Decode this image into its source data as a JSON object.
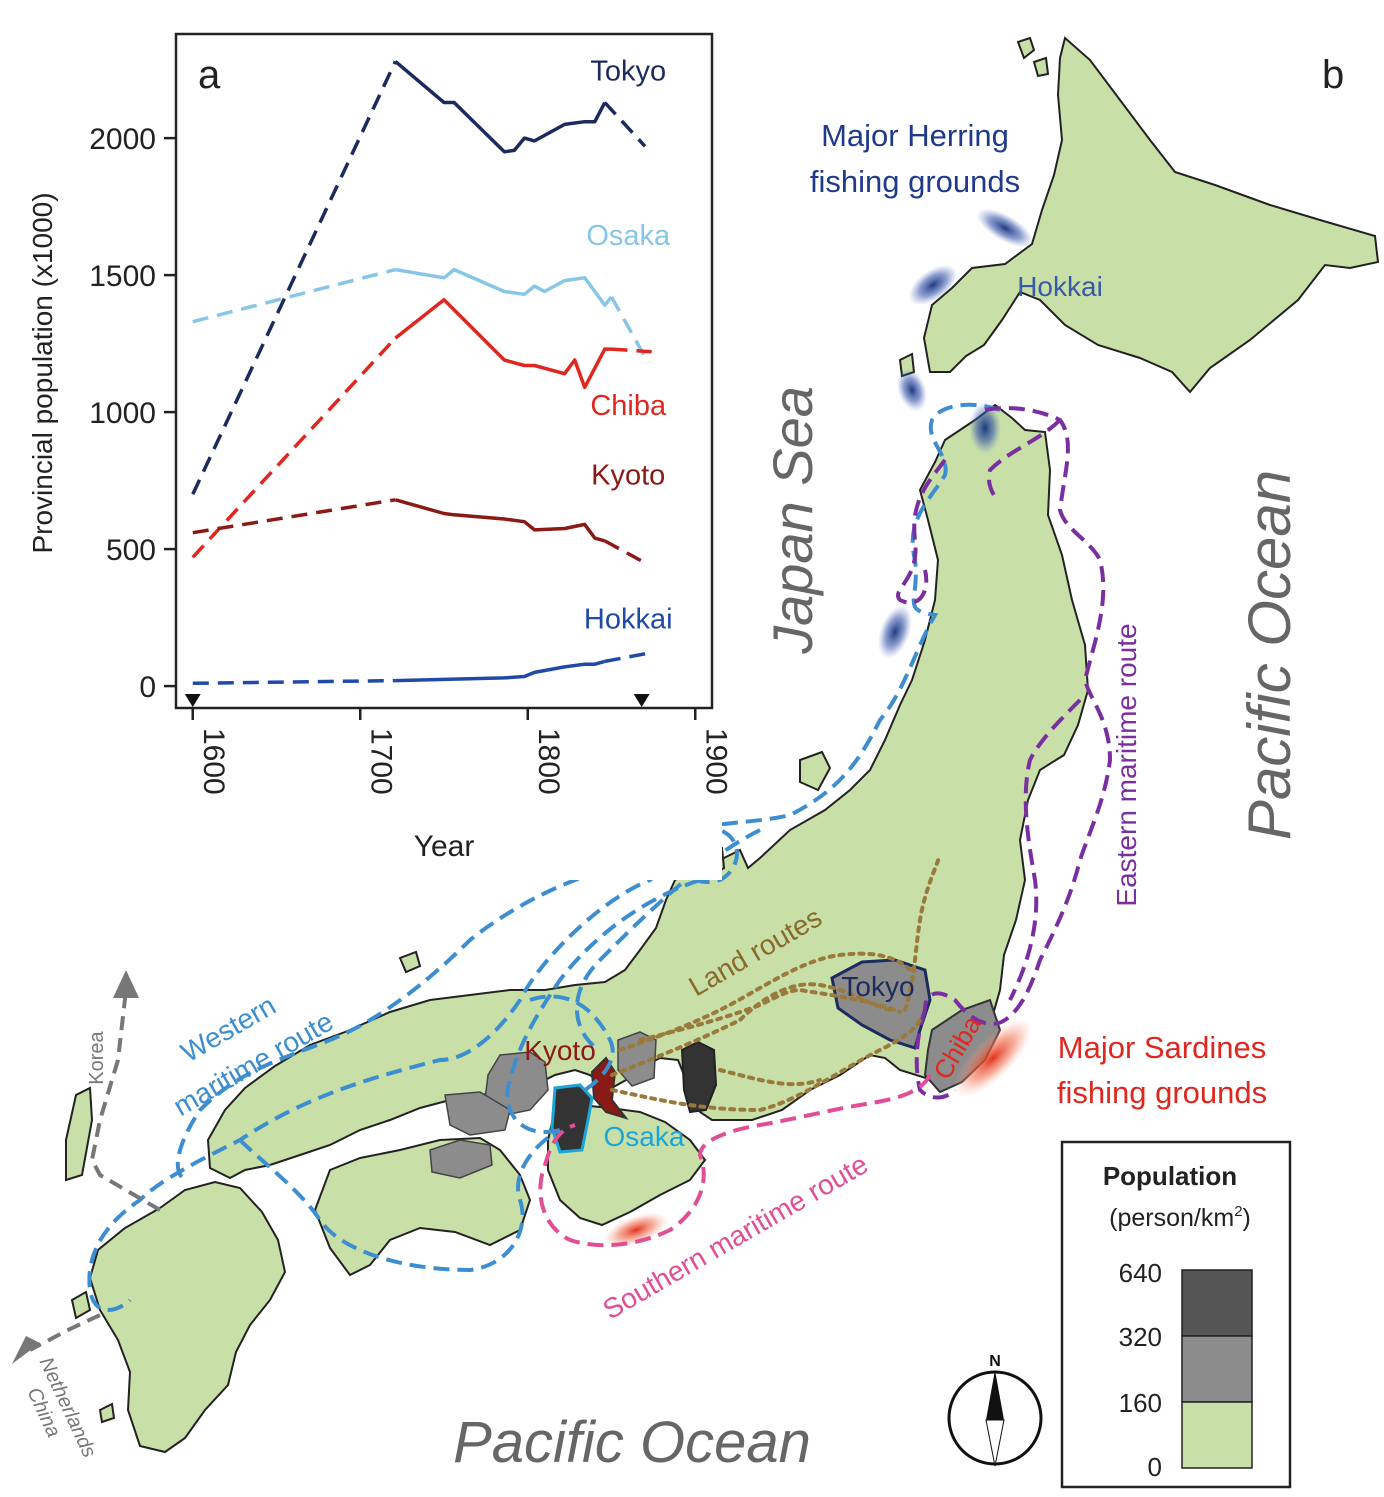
{
  "panel_a": {
    "label": "a",
    "ylabel": "Provincial population (x1000)",
    "xlabel": "Year",
    "colors": {
      "Tokyo": "#1d2a5e",
      "Osaka": "#87c6e6",
      "Chiba": "#e0271f",
      "Kyoto": "#8a1a16",
      "Hokkai": "#1f4aa8"
    }
  },
  "chart_data": {
    "type": "line",
    "xlabel": "Year",
    "ylabel": "Provincial population (x1000)",
    "xlim": [
      1590,
      1910
    ],
    "ylim": [
      -80,
      2380
    ],
    "x_ticks": [
      "1600",
      "1700",
      "1800",
      "1900"
    ],
    "y_ticks": [
      "0",
      "500",
      "1000",
      "1500",
      "2000"
    ],
    "x_tick_values": [
      1600,
      1700,
      1800,
      1900
    ],
    "y_tick_values": [
      0,
      500,
      1000,
      1500,
      2000
    ],
    "markers_x": [
      1600,
      1868
    ],
    "series": [
      {
        "name": "Tokyo",
        "label_at": [
          1860,
          2210
        ],
        "dashed": [
          [
            1600,
            700
          ],
          [
            1721,
            2280
          ]
        ],
        "solid": [
          [
            1721,
            2280
          ],
          [
            1750,
            2130
          ],
          [
            1756,
            2130
          ],
          [
            1786,
            1950
          ],
          [
            1792,
            1955
          ],
          [
            1798,
            2000
          ],
          [
            1804,
            1990
          ],
          [
            1822,
            2050
          ],
          [
            1834,
            2060
          ],
          [
            1840,
            2060
          ],
          [
            1846,
            2130
          ]
        ],
        "dashed_end": [
          [
            1846,
            2130
          ],
          [
            1870,
            1970
          ]
        ]
      },
      {
        "name": "Osaka",
        "label_at": [
          1860,
          1610
        ],
        "dashed": [
          [
            1600,
            1330
          ],
          [
            1721,
            1520
          ]
        ],
        "solid": [
          [
            1721,
            1520
          ],
          [
            1750,
            1490
          ],
          [
            1756,
            1520
          ],
          [
            1786,
            1440
          ],
          [
            1798,
            1430
          ],
          [
            1804,
            1460
          ],
          [
            1810,
            1440
          ],
          [
            1822,
            1480
          ],
          [
            1834,
            1490
          ],
          [
            1840,
            1440
          ],
          [
            1846,
            1390
          ],
          [
            1850,
            1420
          ]
        ],
        "dashed_end": [
          [
            1850,
            1420
          ],
          [
            1872,
            1180
          ]
        ]
      },
      {
        "name": "Chiba",
        "label_at": [
          1860,
          990
        ],
        "dashed": [
          [
            1600,
            470
          ],
          [
            1721,
            1270
          ]
        ],
        "solid": [
          [
            1721,
            1270
          ],
          [
            1750,
            1410
          ],
          [
            1786,
            1190
          ],
          [
            1798,
            1170
          ],
          [
            1804,
            1170
          ],
          [
            1822,
            1140
          ],
          [
            1828,
            1190
          ],
          [
            1834,
            1090
          ],
          [
            1846,
            1230
          ],
          [
            1850,
            1230
          ]
        ],
        "dashed_end": [
          [
            1850,
            1230
          ],
          [
            1874,
            1220
          ]
        ]
      },
      {
        "name": "Kyoto",
        "label_at": [
          1860,
          735
        ],
        "dashed": [
          [
            1600,
            560
          ],
          [
            1721,
            680
          ]
        ],
        "solid": [
          [
            1721,
            680
          ],
          [
            1750,
            630
          ],
          [
            1756,
            625
          ],
          [
            1786,
            610
          ],
          [
            1798,
            600
          ],
          [
            1804,
            570
          ],
          [
            1822,
            575
          ],
          [
            1834,
            590
          ],
          [
            1840,
            540
          ],
          [
            1846,
            530
          ]
        ],
        "dashed_end": [
          [
            1846,
            530
          ],
          [
            1870,
            450
          ]
        ]
      },
      {
        "name": "Hokkai",
        "label_at": [
          1860,
          210
        ],
        "dashed": [
          [
            1600,
            10
          ],
          [
            1721,
            20
          ]
        ],
        "solid": [
          [
            1721,
            20
          ],
          [
            1786,
            30
          ],
          [
            1798,
            35
          ],
          [
            1804,
            50
          ],
          [
            1822,
            70
          ],
          [
            1834,
            80
          ],
          [
            1840,
            80
          ],
          [
            1846,
            90
          ]
        ],
        "dashed_end": [
          [
            1846,
            90
          ],
          [
            1872,
            120
          ]
        ]
      }
    ]
  },
  "map": {
    "panel_label": "b",
    "seas": {
      "japan_sea": "Japan Sea",
      "pacific_right": "Pacific Ocean",
      "pacific_bottom": "Pacific Ocean"
    },
    "herring_label": [
      "Major Herring",
      "fishing grounds"
    ],
    "sardine_label": [
      "Major Sardines",
      "fishing grounds"
    ],
    "places": {
      "hokkai": "Hokkai",
      "tokyo": "Tokyo",
      "chiba": "Chiba",
      "kyoto": "Kyoto",
      "osaka": "Osaka"
    },
    "routes": {
      "western": [
        "Western",
        "maritime route"
      ],
      "eastern": "Eastern maritime route",
      "southern": "Southern maritime route",
      "land": "Land routes"
    },
    "destinations": {
      "korea": "Korea",
      "china": "China",
      "netherlands": "Netherlands"
    },
    "compass_n": "N",
    "colors": {
      "land": "#c8e0a8",
      "western": "#3d8ed0",
      "eastern": "#7a2fa0",
      "southern": "#e04e95",
      "land_route": "#9a7a3c",
      "herring": "#1f3a8a",
      "sardine": "#e03a1e",
      "ocean_text": "#666666"
    }
  },
  "legend": {
    "title": "Population",
    "unit_prefix": "(person/km",
    "unit_sup": "2",
    "unit_suffix": ")",
    "ticks": [
      "640",
      "320",
      "160",
      "0"
    ],
    "bins": [
      {
        "range": "320-640",
        "color": "#555555"
      },
      {
        "range": "160-320",
        "color": "#8c8c8c"
      },
      {
        "range": "0-160",
        "color": "#c8e0a8"
      }
    ]
  }
}
